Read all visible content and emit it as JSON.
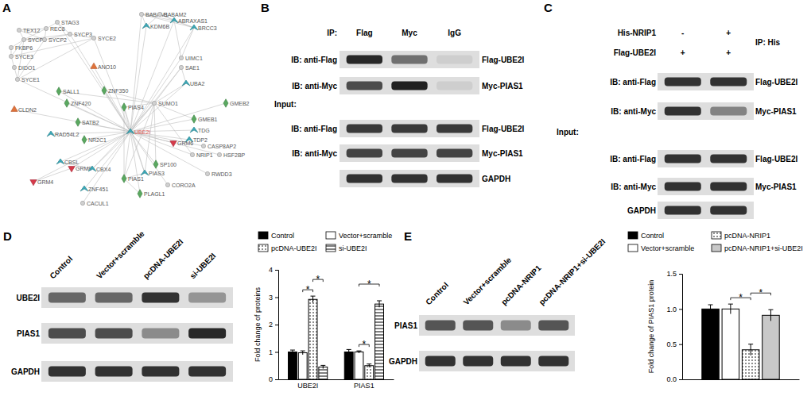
{
  "network": {
    "letter": "A",
    "nodes": [
      "TEX12",
      "REC8",
      "STAG3",
      "SYCP1",
      "SYCP2",
      "SYCP3",
      "FKBP6",
      "SYCE3",
      "DIDO1",
      "SYCE1",
      "SYCE2",
      "ANO10",
      "SALL1",
      "ZNF420",
      "ZNF350",
      "PIAS4",
      "UBE2I",
      "CLDN2",
      "SATB2",
      "RAD54L2",
      "NR2C1",
      "SUMO1",
      "BABAM1",
      "BABAM2",
      "ABRAXAS1",
      "KDM6B",
      "BRCC3",
      "UIMC1",
      "SAE1",
      "UBA2",
      "GMEB2",
      "GMEB1",
      "TDG",
      "TDP2",
      "GRM6",
      "CASP8AP2",
      "NRIP1",
      "HSF2BP",
      "RWDD3",
      "SP100",
      "CORO2A",
      "CBSL",
      "GRM8",
      "CBX4",
      "GRM4",
      "PIAS1",
      "PIAS3",
      "ZNF451",
      "PLAGL1",
      "CACUL1"
    ],
    "edges": [
      [
        0,
        1
      ],
      [
        0,
        3
      ],
      [
        1,
        2
      ],
      [
        1,
        3
      ],
      [
        1,
        4
      ],
      [
        2,
        5
      ],
      [
        3,
        4
      ],
      [
        3,
        5
      ],
      [
        4,
        5
      ],
      [
        6,
        7
      ],
      [
        7,
        8
      ],
      [
        8,
        9
      ],
      [
        3,
        9
      ],
      [
        7,
        3
      ],
      [
        10,
        5
      ],
      [
        10,
        9
      ],
      [
        10,
        7
      ],
      [
        4,
        9
      ],
      [
        6,
        3
      ],
      [
        0,
        4
      ],
      [
        22,
        23
      ],
      [
        22,
        24
      ],
      [
        23,
        24
      ],
      [
        24,
        26
      ],
      [
        22,
        26
      ],
      [
        23,
        26
      ],
      [
        25,
        22
      ],
      [
        27,
        24
      ],
      [
        27,
        26
      ],
      [
        25,
        23
      ],
      [
        21,
        15
      ],
      [
        21,
        28
      ],
      [
        21,
        29
      ],
      [
        21,
        31
      ],
      [
        21,
        36
      ],
      [
        21,
        45
      ],
      [
        21,
        46
      ],
      [
        21,
        39
      ],
      [
        21,
        14
      ],
      [
        21,
        12
      ],
      [
        21,
        43
      ],
      [
        16,
        9
      ],
      [
        16,
        10
      ],
      [
        16,
        11
      ],
      [
        16,
        12
      ],
      [
        16,
        13
      ],
      [
        16,
        14
      ],
      [
        16,
        15
      ],
      [
        16,
        17
      ],
      [
        16,
        18
      ],
      [
        16,
        19
      ],
      [
        16,
        20
      ],
      [
        16,
        21
      ],
      [
        16,
        22
      ],
      [
        16,
        25
      ],
      [
        16,
        27
      ],
      [
        16,
        28
      ],
      [
        16,
        29
      ],
      [
        16,
        30
      ],
      [
        16,
        31
      ],
      [
        16,
        32
      ],
      [
        16,
        33
      ],
      [
        16,
        34
      ],
      [
        16,
        35
      ],
      [
        16,
        36
      ],
      [
        16,
        37
      ],
      [
        16,
        38
      ],
      [
        16,
        39
      ],
      [
        16,
        40
      ],
      [
        16,
        41
      ],
      [
        16,
        42
      ],
      [
        16,
        43
      ],
      [
        16,
        44
      ],
      [
        16,
        45
      ],
      [
        16,
        46
      ],
      [
        16,
        47
      ],
      [
        16,
        48
      ],
      [
        16,
        49
      ],
      [
        16,
        2
      ],
      [
        16,
        5
      ],
      [
        16,
        24
      ],
      [
        16,
        26
      ],
      [
        29,
        28
      ],
      [
        45,
        46
      ],
      [
        45,
        48
      ],
      [
        45,
        15
      ],
      [
        46,
        15
      ],
      [
        44,
        42
      ],
      [
        41,
        43
      ]
    ]
  },
  "blots": [
    {
      "letter": "B",
      "header_rows": [
        {
          "label": "IP:",
          "lanes": [
            "Flag",
            "Myc",
            "IgG"
          ]
        }
      ],
      "sections": [
        {
          "rows": [
            {
              "label": "IB: anti-Flag",
              "target": "Flag-UBE2I",
              "bands": [
                0.95,
                0.55,
                0.03
              ]
            },
            {
              "label": "IB: anti-Myc",
              "target": "Myc-PIAS1",
              "bands": [
                0.75,
                1,
                0.03
              ]
            }
          ]
        },
        {
          "title": "Input:",
          "rows": [
            {
              "label": "IB: anti-Flag",
              "target": "Flag-UBE2I",
              "bands": [
                0.85,
                0.85,
                0.85
              ]
            },
            {
              "label": "IB: anti-Myc",
              "target": "Myc-PIAS1",
              "bands": [
                0.8,
                0.8,
                0.8
              ]
            },
            {
              "target": "GAPDH",
              "bands": [
                0.9,
                0.9,
                0.9
              ]
            }
          ]
        }
      ]
    },
    {
      "letter": "C",
      "header_rows": [
        {
          "label": "His-NRIP1",
          "lanes": [
            "-",
            "+"
          ]
        },
        {
          "label": "Flag-UBE2I",
          "lanes": [
            "+",
            "+"
          ]
        }
      ],
      "note": "IP: His",
      "sections": [
        {
          "rows": [
            {
              "label": "IB: anti-Flag",
              "target": "Flag-UBE2I",
              "bands": [
                0.9,
                0.9
              ]
            },
            {
              "label": "IB: anti-Myc",
              "target": "Myc-PIAS1",
              "bands": [
                0.9,
                0.45
              ]
            }
          ]
        },
        {
          "title": "Input:",
          "rows": [
            {
              "label": "IB: anti-Flag",
              "target": "Flag-UBE2I",
              "bands": [
                0.9,
                0.9
              ]
            },
            {
              "label": "IB: anti-Myc",
              "target": "Myc-PIAS1",
              "bands": [
                0.9,
                0.9
              ]
            },
            {
              "label": "GAPDH",
              "bands": [
                0.9,
                0.9
              ]
            }
          ]
        }
      ]
    },
    {
      "letter": "D",
      "lanes": [
        "Control",
        "Vector+scramble",
        "pcDNA-UBE2I",
        "si-UBE2I"
      ],
      "sections": [
        {
          "rows": [
            {
              "label": "UBE2I",
              "bands": [
                0.6,
                0.6,
                0.9,
                0.35
              ]
            },
            {
              "label": "PIAS1",
              "bands": [
                0.75,
                0.75,
                0.4,
                0.95
              ]
            },
            {
              "label": "GAPDH",
              "bands": [
                0.9,
                0.9,
                0.9,
                0.9
              ]
            }
          ]
        }
      ]
    },
    {
      "letter": "E",
      "lanes": [
        "Control",
        "Vector+scramble",
        "pcDNA-NRIP1",
        "pcDNA-NRIP1+si-UBE2I"
      ],
      "sections": [
        {
          "rows": [
            {
              "label": "PIAS1",
              "bands": [
                0.7,
                0.7,
                0.4,
                0.7
              ]
            },
            {
              "label": "GAPDH",
              "bands": [
                0.9,
                0.9,
                0.9,
                0.9
              ]
            }
          ]
        }
      ]
    }
  ],
  "chart_data": [
    {
      "type": "bar",
      "categories": [
        "UBE2I",
        "PIAS1"
      ],
      "series": [
        {
          "name": "Control",
          "color": "#000000",
          "values": [
            1.0,
            1.0
          ],
          "errors": [
            0.07,
            0.09
          ]
        },
        {
          "name": "Vector+scramble",
          "color": "#ffffff",
          "values": [
            0.97,
            1.0
          ],
          "errors": [
            0.07,
            0.04
          ]
        },
        {
          "name": "pcDNA-UBE2I",
          "color": "#ffffff",
          "values": [
            2.92,
            0.5
          ],
          "errors": [
            0.12,
            0.06
          ]
        },
        {
          "name": "si-UBE2I",
          "color": "#ffffff",
          "values": [
            0.45,
            2.75
          ],
          "errors": [
            0.06,
            0.12
          ]
        }
      ],
      "y_label": "Fold change of proteins",
      "ylim": [
        0,
        4
      ],
      "yticks": [
        0,
        1,
        2,
        3,
        4
      ],
      "legend": "top",
      "annotations": [
        {
          "category": "UBE2I",
          "pair": [
            "Vector+scramble",
            "pcDNA-UBE2I"
          ],
          "label": "*"
        },
        {
          "category": "UBE2I",
          "pair": [
            "pcDNA-UBE2I",
            "si-UBE2I"
          ],
          "label": "*"
        },
        {
          "category": "PIAS1",
          "pair": [
            "Vector+scramble",
            "pcDNA-UBE2I"
          ],
          "label": "*"
        },
        {
          "category": "PIAS1",
          "pair": [
            "Vector+scramble",
            "si-UBE2I"
          ],
          "label": "*"
        }
      ]
    },
    {
      "type": "bar",
      "categories": [
        null
      ],
      "series": [
        {
          "name": "Control",
          "color": "#000000",
          "values": [
            1.0
          ],
          "errors": [
            0.06
          ]
        },
        {
          "name": "Vector+scramble",
          "color": "#ffffff",
          "values": [
            1.0
          ],
          "errors": [
            0.07
          ]
        },
        {
          "name": "pcDNA-NRIP1",
          "color": "#ffffff",
          "values": [
            0.42
          ],
          "errors": [
            0.08
          ]
        },
        {
          "name": "pcDNA-NRIP1+si-UBE2I",
          "color": "#c8c8c8",
          "values": [
            0.91
          ],
          "errors": [
            0.08
          ]
        }
      ],
      "y_label": "Fold change of PIAS1 protein",
      "ylim": [
        0,
        1.5
      ],
      "yticks": [
        {
          "value": 0,
          "label": "0.0"
        },
        0.5,
        {
          "value": 1,
          "label": "1.0"
        },
        1.5
      ],
      "legend": "top",
      "annotations": [
        {
          "pair": [
            "Vector+scramble",
            "pcDNA-NRIP1"
          ],
          "label": "*"
        },
        {
          "pair": [
            "pcDNA-NRIP1",
            "pcDNA-NRIP1+si-UBE2I"
          ],
          "label": "*"
        }
      ]
    }
  ]
}
